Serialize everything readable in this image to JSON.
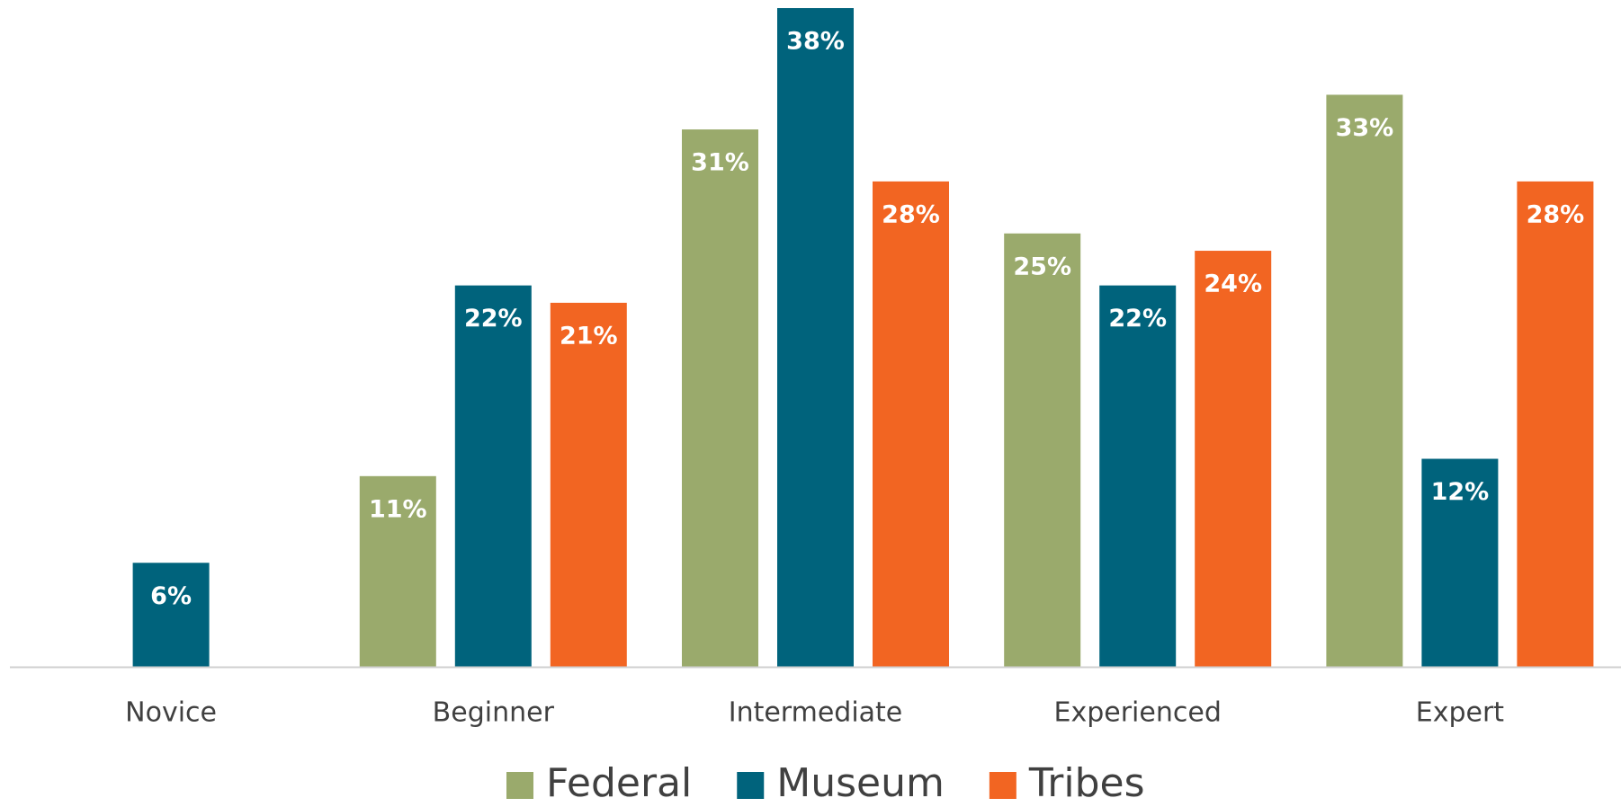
{
  "chart_data": {
    "type": "bar",
    "categories": [
      "Novice",
      "Beginner",
      "Intermediate",
      "Experienced",
      "Expert"
    ],
    "series": [
      {
        "name": "Federal",
        "color": "#9aaa6c",
        "values": [
          null,
          11,
          31,
          25,
          33
        ],
        "value_labels": [
          null,
          "11%",
          "31%",
          "25%",
          "33%"
        ]
      },
      {
        "name": "Museum",
        "color": "#00637c",
        "values": [
          6,
          22,
          38,
          22,
          12
        ],
        "value_labels": [
          "6%",
          "22%",
          "38%",
          "22%",
          "12%"
        ]
      },
      {
        "name": "Tribes",
        "color": "#f26522",
        "values": [
          null,
          21,
          28,
          24,
          28
        ],
        "value_labels": [
          null,
          "21%",
          "28%",
          "24%",
          "28%"
        ]
      }
    ]
  }
}
